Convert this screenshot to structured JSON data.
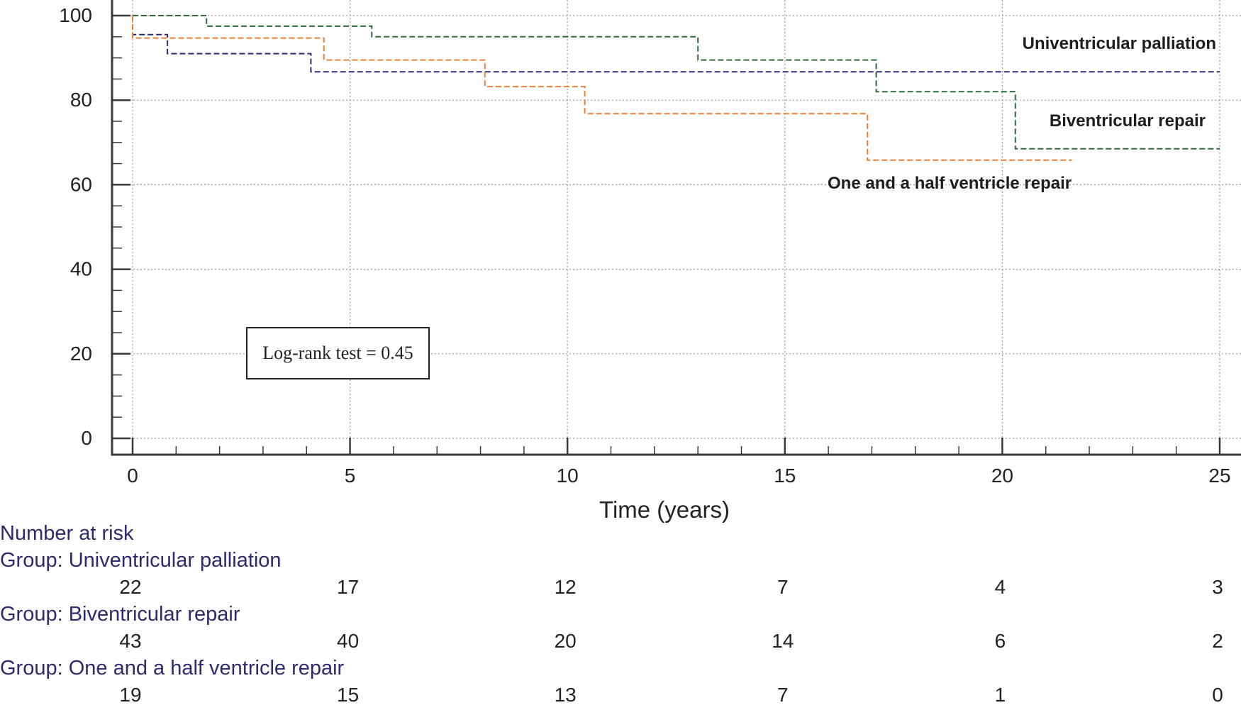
{
  "chart_data": {
    "type": "line",
    "step": true,
    "xlabel": "Time (years)",
    "ylabel": "",
    "xlim": [
      0,
      25
    ],
    "ylim": [
      0,
      100
    ],
    "x_ticks": [
      0,
      5,
      10,
      15,
      20,
      25
    ],
    "y_ticks": [
      0,
      20,
      40,
      60,
      80,
      100
    ],
    "grid": true,
    "annotation": "Log-rank test = 0.45",
    "series": [
      {
        "name": "Univentricular palliation",
        "color": "#2e2a7a",
        "points": [
          [
            0,
            100
          ],
          [
            0,
            95.5
          ],
          [
            0.8,
            95.5
          ],
          [
            0.8,
            91
          ],
          [
            4.1,
            91
          ],
          [
            4.1,
            86.7
          ],
          [
            25,
            86.7
          ]
        ]
      },
      {
        "name": "Biventricular repair",
        "color": "#2f6b3a",
        "points": [
          [
            0,
            100
          ],
          [
            1.7,
            100
          ],
          [
            1.7,
            97.5
          ],
          [
            5.5,
            97.5
          ],
          [
            5.5,
            95
          ],
          [
            13,
            95
          ],
          [
            13,
            89.5
          ],
          [
            17.1,
            89.5
          ],
          [
            17.1,
            82
          ],
          [
            20.3,
            82
          ],
          [
            20.3,
            68.5
          ],
          [
            25,
            68.5
          ]
        ]
      },
      {
        "name": "One and a half ventricle repair",
        "color": "#e8813a",
        "points": [
          [
            0,
            100
          ],
          [
            0,
            94.7
          ],
          [
            4.4,
            94.7
          ],
          [
            4.4,
            89.5
          ],
          [
            8.1,
            89.5
          ],
          [
            8.1,
            83.2
          ],
          [
            10.4,
            83.2
          ],
          [
            10.4,
            76.8
          ],
          [
            16.9,
            76.8
          ],
          [
            16.9,
            65.8
          ],
          [
            21.6,
            65.8
          ]
        ]
      }
    ],
    "risk_table": {
      "title": "Number at risk",
      "time_points": [
        0,
        5,
        10,
        15,
        20,
        25
      ],
      "groups": [
        {
          "label": "Group: Univentricular palliation",
          "values": [
            "22",
            "17",
            "12",
            "7",
            "4",
            "3"
          ]
        },
        {
          "label": "Group: Biventricular repair",
          "values": [
            "43",
            "40",
            "20",
            "14",
            "6",
            "2"
          ]
        },
        {
          "label": "Group: One and a half ventricle repair",
          "values": [
            "19",
            "15",
            "13",
            "7",
            "1",
            "0"
          ]
        }
      ]
    }
  }
}
